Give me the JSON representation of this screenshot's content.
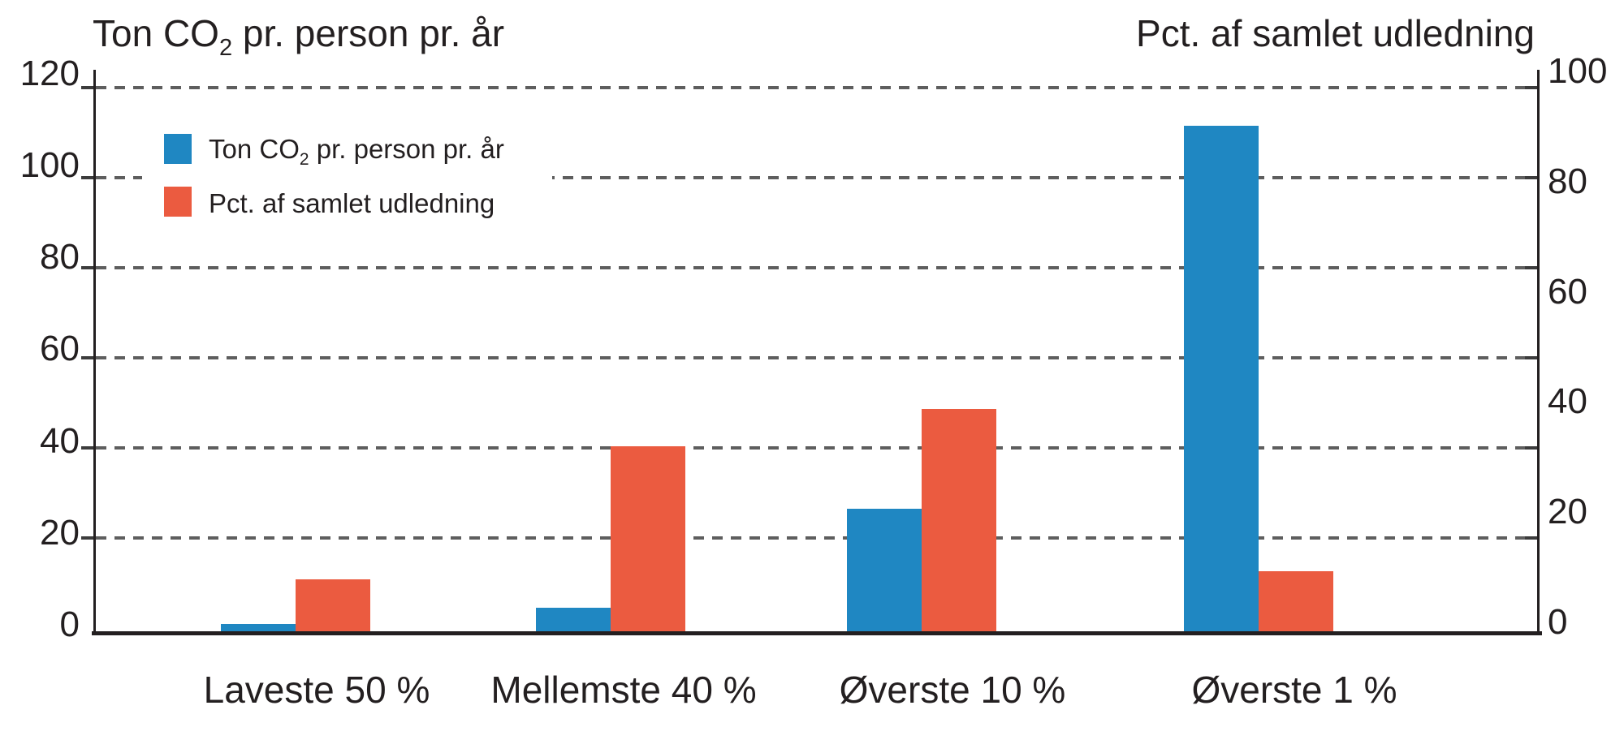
{
  "titles": {
    "left": {
      "pre": "Ton CO",
      "sub": "2",
      "post": " pr. person pr. år"
    },
    "right": "Pct. af samlet udledning"
  },
  "legend": {
    "items": [
      {
        "pre": "Ton CO",
        "sub": "2",
        "post": " pr. person pr. år",
        "color": "#1F87C2"
      },
      {
        "label": "Pct. af samlet udledning",
        "color": "#EB5B40"
      }
    ]
  },
  "chart_data": {
    "type": "bar",
    "categories": [
      "Laveste 50 %",
      "Mellemste 40 %",
      "Øverste 10 %",
      "Øverste 1 %"
    ],
    "series": [
      {
        "name": "Ton CO2 pr. person pr. år",
        "axis": "left",
        "color": "#1F87C2",
        "values": [
          1.5,
          5,
          27,
          112
        ]
      },
      {
        "name": "Pct. af samlet udledning",
        "axis": "right",
        "color": "#EB5B40",
        "values": [
          9.5,
          34,
          41,
          11
        ]
      }
    ],
    "left_axis": {
      "title": "Ton CO2 pr. person pr. år",
      "ticks": [
        120,
        100,
        80,
        60,
        40,
        20,
        0
      ],
      "range": [
        0,
        120
      ]
    },
    "right_axis": {
      "title": "Pct. af samlet udledning",
      "ticks": [
        100,
        80,
        60,
        40,
        20,
        0
      ],
      "range": [
        0,
        100
      ]
    },
    "grid": "dashed-horizontal",
    "legend_position": "top-left",
    "colors": {
      "bar_blue": "#1F87C2",
      "bar_orange": "#EB5B40",
      "text": "#231f20",
      "grid": "#5e5e5e"
    }
  }
}
